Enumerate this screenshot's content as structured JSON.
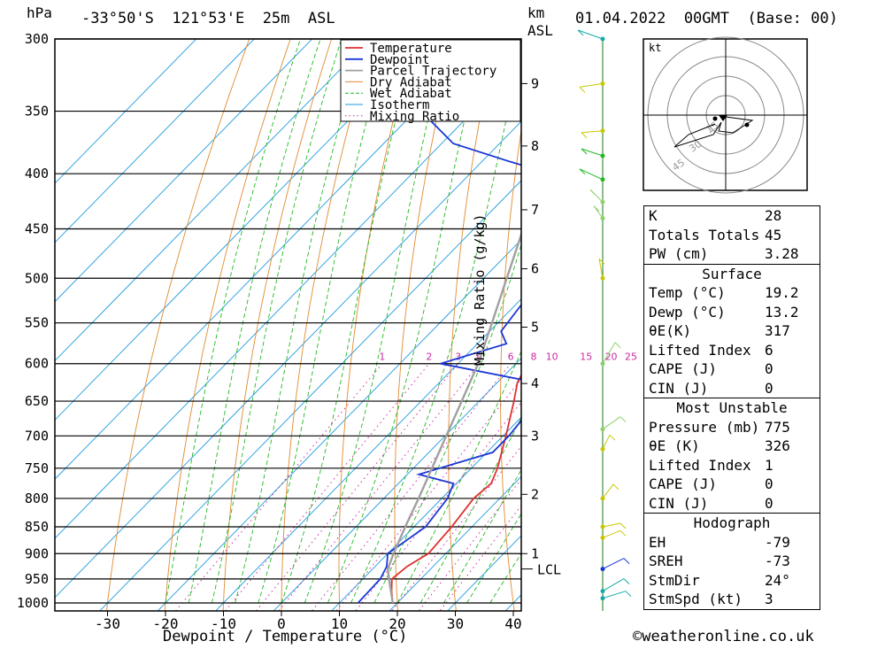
{
  "header": {
    "pressure_unit": "hPa",
    "location": "-33°50'S  121°53'E  25m  ASL",
    "height_unit_top": "km",
    "height_unit_bottom": "ASL",
    "datetime": "01.04.2022  00GMT  (Base: 00)"
  },
  "footer": {
    "credit": "©weatheronline.co.uk"
  },
  "colors": {
    "temperature": "#e03030",
    "dewpoint": "#1a36d6",
    "parcel": "#a0a0a0",
    "dry_adiabat": "#e08a30",
    "wet_adiabat": "#22b822",
    "isotherm": "#1e9be0",
    "mixing_ratio": "#cc2aa0"
  },
  "chart_data": {
    "type": "line",
    "xlabel": "Dewpoint / Temperature (°C)",
    "ylabel": "hPa",
    "right_axis_label": "Mixing Ratio (g/kg)",
    "xlim": [
      -40,
      40
    ],
    "ylim": [
      1000,
      300
    ],
    "x_ticks": [
      -30,
      -20,
      -10,
      0,
      10,
      20,
      30,
      40
    ],
    "pressure_levels": [
      300,
      350,
      400,
      450,
      500,
      550,
      600,
      650,
      700,
      750,
      800,
      850,
      900,
      950,
      1000
    ],
    "height_ticks_km": [
      "1",
      "2",
      "3",
      "4",
      "5",
      "6",
      "7",
      "8",
      "9"
    ],
    "height_tick_pressures": [
      900,
      793,
      700,
      626,
      555,
      490,
      432,
      377,
      330
    ],
    "lcl_label": "LCL",
    "lcl_pressure": 930,
    "mixing_ratio_labels": [
      "1",
      "2",
      "3",
      "4",
      "6",
      "8",
      "10",
      "15",
      "20",
      "25"
    ],
    "legend": [
      "Temperature",
      "Dewpoint",
      "Parcel Trajectory",
      "Dry Adiabat",
      "Wet Adiabat",
      "Isotherm",
      "Mixing Ratio"
    ],
    "series": [
      {
        "name": "Temperature",
        "points": [
          [
            1000,
            19.2
          ],
          [
            975,
            17
          ],
          [
            950,
            15
          ],
          [
            925,
            15.5
          ],
          [
            900,
            17
          ],
          [
            850,
            16.5
          ],
          [
            800,
            15.5
          ],
          [
            775,
            16
          ],
          [
            750,
            14.5
          ],
          [
            700,
            10.5
          ],
          [
            650,
            6
          ],
          [
            625,
            3.5
          ],
          [
            600,
            2
          ],
          [
            575,
            0
          ],
          [
            550,
            -3.5
          ],
          [
            500,
            -9
          ],
          [
            450,
            -15
          ],
          [
            425,
            -19
          ],
          [
            400,
            -24
          ],
          [
            375,
            -28
          ],
          [
            350,
            -33
          ],
          [
            325,
            -38
          ],
          [
            300,
            -43
          ]
        ]
      },
      {
        "name": "Dewpoint",
        "points": [
          [
            1000,
            13.2
          ],
          [
            950,
            13
          ],
          [
            925,
            12
          ],
          [
            900,
            10
          ],
          [
            850,
            12
          ],
          [
            800,
            11
          ],
          [
            775,
            9.5
          ],
          [
            760,
            2
          ],
          [
            725,
            11
          ],
          [
            700,
            11
          ],
          [
            650,
            10
          ],
          [
            625,
            7
          ],
          [
            600,
            -13
          ],
          [
            575,
            -5
          ],
          [
            560,
            -8
          ],
          [
            500,
            -10
          ],
          [
            450,
            -17
          ],
          [
            425,
            -22
          ],
          [
            400,
            -26
          ],
          [
            390,
            -35
          ],
          [
            375,
            -48
          ],
          [
            350,
            -59
          ],
          [
            325,
            -62
          ],
          [
            300,
            -58
          ]
        ]
      },
      {
        "name": "Parcel Trajectory",
        "points": [
          [
            1000,
            19.2
          ],
          [
            950,
            14.5
          ],
          [
            930,
            12.6
          ],
          [
            900,
            11
          ],
          [
            850,
            8.5
          ],
          [
            800,
            6
          ],
          [
            750,
            3.2
          ],
          [
            700,
            0.2
          ],
          [
            650,
            -3
          ],
          [
            600,
            -6.5
          ],
          [
            550,
            -11
          ],
          [
            500,
            -16
          ],
          [
            450,
            -21.5
          ],
          [
            400,
            -28
          ],
          [
            350,
            -35.5
          ],
          [
            300,
            -44
          ]
        ]
      }
    ]
  },
  "winds": {
    "unit": "kt",
    "hodograph_ring_labels": [
      "15",
      "30",
      "45"
    ]
  },
  "indices": [
    {
      "label": "K",
      "value": "28"
    },
    {
      "label": "Totals Totals",
      "value": "45"
    },
    {
      "label": "PW (cm)",
      "value": "3.28"
    }
  ],
  "surface": {
    "title": "Surface",
    "rows": [
      {
        "label": "Temp (°C)",
        "value": "19.2"
      },
      {
        "label": "Dewp (°C)",
        "value": "13.2"
      },
      {
        "label": "θE(K)",
        "value": "317"
      },
      {
        "label": "Lifted Index",
        "value": "6"
      },
      {
        "label": "CAPE (J)",
        "value": "0"
      },
      {
        "label": "CIN (J)",
        "value": "0"
      }
    ]
  },
  "most_unstable": {
    "title": "Most Unstable",
    "rows": [
      {
        "label": "Pressure (mb)",
        "value": "775"
      },
      {
        "label": "θE (K)",
        "value": "326"
      },
      {
        "label": "Lifted Index",
        "value": "1"
      },
      {
        "label": "CAPE (J)",
        "value": "0"
      },
      {
        "label": "CIN (J)",
        "value": "0"
      }
    ]
  },
  "hodograph": {
    "title": "Hodograph",
    "rows": [
      {
        "label": "EH",
        "value": "-79"
      },
      {
        "label": "SREH",
        "value": "-73"
      },
      {
        "label": "StmDir",
        "value": "24°"
      },
      {
        "label": "StmSpd (kt)",
        "value": "3"
      }
    ]
  }
}
